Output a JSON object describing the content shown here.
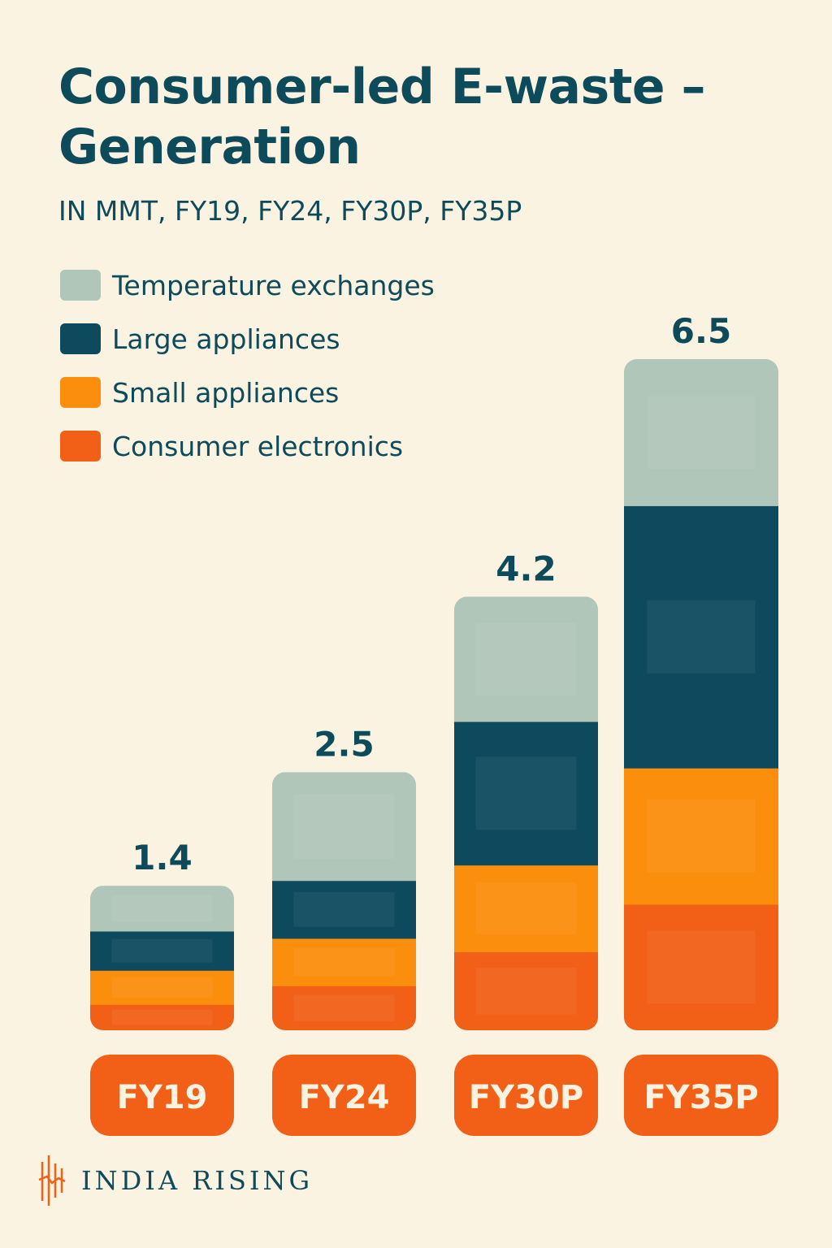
{
  "chart_data": {
    "type": "bar",
    "stacked": true,
    "title": "Consumer-led E-waste –\nGeneration",
    "subtitle": "IN MMT, FY19, FY24, FY30P, FY35P",
    "unit": "MMT",
    "categories": [
      "FY19",
      "FY24",
      "FY30P",
      "FY35P"
    ],
    "totals": [
      1.4,
      2.5,
      4.2,
      6.5
    ],
    "total_labels": [
      "1.4",
      "2.5",
      "4.2",
      "6.5"
    ],
    "series": [
      {
        "name": "Consumer electronics",
        "color": "#f25f16",
        "values": [
          0.25,
          0.43,
          0.76,
          1.22
        ]
      },
      {
        "name": "Small appliances",
        "color": "#fb8e0c",
        "values": [
          0.33,
          0.46,
          0.84,
          1.32
        ]
      },
      {
        "name": "Large appliances",
        "color": "#0e4a5e",
        "values": [
          0.38,
          0.56,
          1.39,
          2.54
        ]
      },
      {
        "name": "Temperature exchanges",
        "color": "#b0c6b8",
        "values": [
          0.44,
          1.05,
          1.21,
          1.42
        ]
      }
    ],
    "legend_order": [
      "Temperature exchanges",
      "Large appliances",
      "Small appliances",
      "Consumer electronics"
    ],
    "legend_position": "top-left",
    "grid": false
  },
  "brand": {
    "name": "INDIA RISING"
  },
  "colors": {
    "background": "#fbf3e2",
    "text": "#0d4a5a",
    "category_pill": "#f25f16",
    "brand_mark": "#f25f16"
  }
}
